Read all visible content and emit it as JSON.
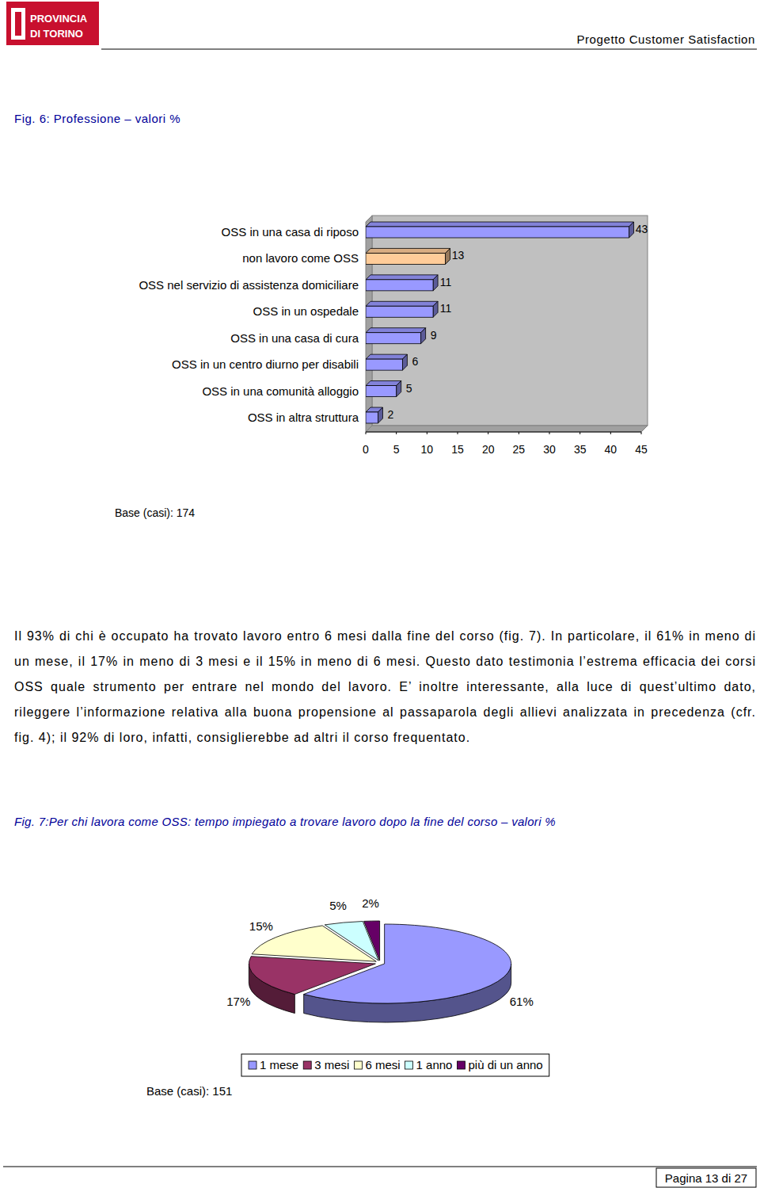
{
  "header": {
    "logo": [
      "PROVINCIA",
      "DI TORINO"
    ],
    "title": "Progetto Customer Satisfaction"
  },
  "chart_data": [
    {
      "type": "bar",
      "title": "Fig. 6: Professione – valori %",
      "orientation": "horizontal",
      "categories": [
        "OSS in una casa di riposo",
        "non lavoro come OSS",
        "OSS nel servizio di assistenza domiciliare",
        "OSS in un ospedale",
        "OSS in una casa di cura",
        "OSS in un centro diurno per disabili",
        "OSS in una comunità alloggio",
        "OSS in altra struttura"
      ],
      "values": [
        43,
        13,
        11,
        11,
        9,
        6,
        5,
        2
      ],
      "colors": [
        "#9999ff",
        "#ffcc99",
        "#9999ff",
        "#9999ff",
        "#9999ff",
        "#9999ff",
        "#9999ff",
        "#9999ff"
      ],
      "xlim": [
        0,
        45
      ],
      "xticks": [
        0,
        5,
        10,
        15,
        20,
        25,
        30,
        35,
        40,
        45
      ],
      "grid": false,
      "data_labels": true,
      "annotations": [
        "Base (casi): 174"
      ]
    },
    {
      "type": "pie",
      "title": "Fig. 7:Per chi lavora come OSS: tempo impiegato a trovare lavoro dopo la fine del corso – valori %",
      "categories": [
        "1 mese",
        "3 mesi",
        "6 mesi",
        "1 anno",
        "più di un anno"
      ],
      "values": [
        61,
        17,
        15,
        5,
        2
      ],
      "value_labels": [
        "61%",
        "17%",
        "15%",
        "5%",
        "2%"
      ],
      "colors": [
        "#9999ff",
        "#993366",
        "#ffffcc",
        "#ccffff",
        "#660066"
      ],
      "data_labels": true,
      "legend": "bottom",
      "annotations": [
        "Base (casi): 151"
      ]
    }
  ],
  "text": {
    "paragraph": "Il 93% di chi è occupato ha trovato lavoro entro 6 mesi dalla fine del corso (fig. 7). In particolare, il 61% in meno di un mese, il 17% in meno di 3 mesi e il 15% in meno di 6 mesi. Questo dato testimonia l’estrema efficacia dei corsi OSS quale strumento per entrare nel mondo del lavoro. E’ inoltre interessante, alla luce di quest’ultimo dato, rileggere l’informazione relativa alla buona propensione al passaparola degli allievi analizzata in precedenza (cfr. fig. 4); il 92% di loro, infatti, consiglierebbe ad altri il corso frequentato."
  },
  "footer": {
    "page": "Pagina 13 di 27"
  }
}
